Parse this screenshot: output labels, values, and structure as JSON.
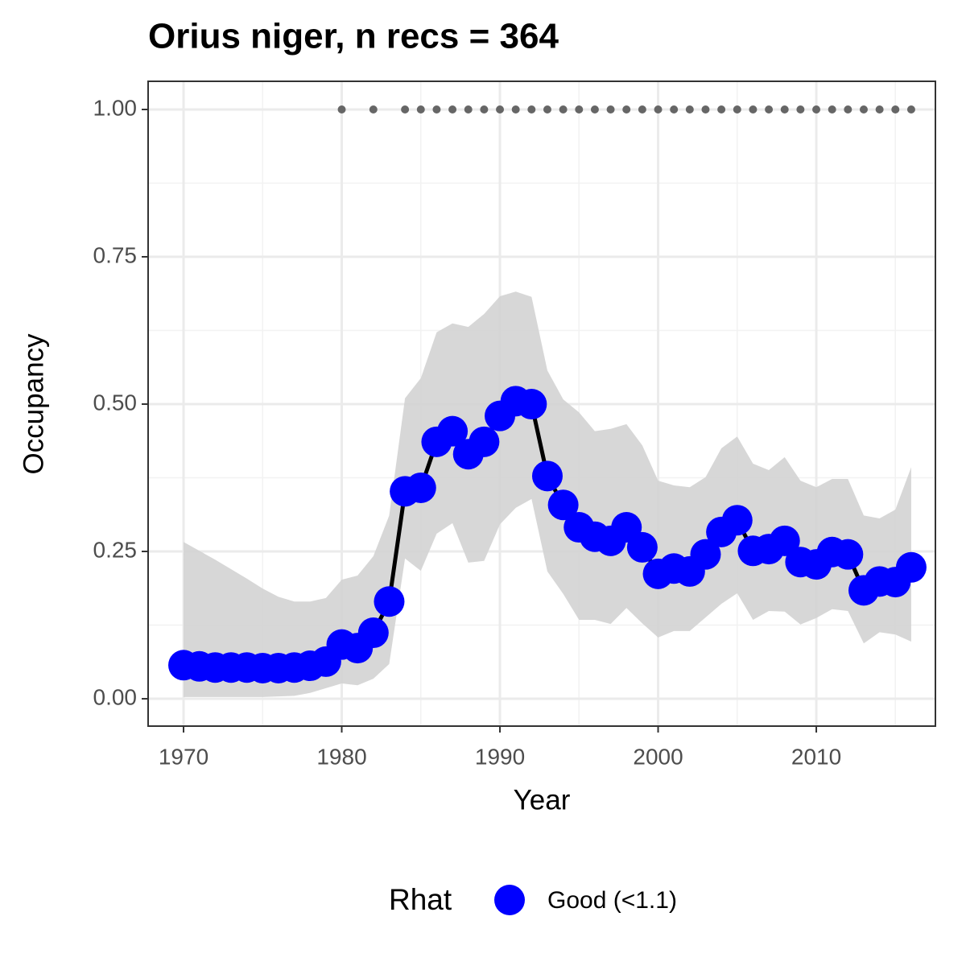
{
  "chart_data": {
    "type": "line",
    "title": "Orius niger, n recs = 364",
    "x_label": "Year",
    "y_label": "Occupancy",
    "legend_title": "Rhat",
    "legend_position": "bottom",
    "x": [
      1970,
      1971,
      1972,
      1973,
      1974,
      1975,
      1976,
      1977,
      1978,
      1979,
      1980,
      1981,
      1982,
      1983,
      1984,
      1985,
      1986,
      1987,
      1988,
      1989,
      1990,
      1991,
      1992,
      1993,
      1994,
      1995,
      1996,
      1997,
      1998,
      1999,
      2000,
      2001,
      2002,
      2003,
      2004,
      2005,
      2006,
      2007,
      2008,
      2009,
      2010,
      2011,
      2012,
      2013,
      2014,
      2015,
      2016
    ],
    "series": [
      {
        "name": "Good (<1.1)",
        "color": "#0000ff",
        "line_color": "#000000",
        "values": [
          0.057,
          0.055,
          0.053,
          0.053,
          0.053,
          0.052,
          0.052,
          0.053,
          0.056,
          0.063,
          0.092,
          0.086,
          0.112,
          0.165,
          0.352,
          0.358,
          0.436,
          0.454,
          0.415,
          0.436,
          0.48,
          0.505,
          0.5,
          0.378,
          0.329,
          0.291,
          0.275,
          0.268,
          0.291,
          0.257,
          0.212,
          0.221,
          0.216,
          0.245,
          0.283,
          0.303,
          0.251,
          0.254,
          0.268,
          0.232,
          0.228,
          0.249,
          0.245,
          0.184,
          0.199,
          0.198,
          0.223
        ]
      }
    ],
    "upper": [
      0.266,
      0.251,
      0.236,
      0.22,
      0.204,
      0.187,
      0.173,
      0.165,
      0.165,
      0.171,
      0.202,
      0.209,
      0.242,
      0.311,
      0.51,
      0.544,
      0.622,
      0.637,
      0.631,
      0.653,
      0.683,
      0.691,
      0.682,
      0.557,
      0.508,
      0.486,
      0.454,
      0.458,
      0.466,
      0.43,
      0.37,
      0.362,
      0.359,
      0.376,
      0.425,
      0.445,
      0.399,
      0.388,
      0.41,
      0.37,
      0.359,
      0.373,
      0.373,
      0.311,
      0.306,
      0.321,
      0.393
    ],
    "lower": [
      0.003,
      0.003,
      0.003,
      0.003,
      0.003,
      0.003,
      0.004,
      0.005,
      0.01,
      0.018,
      0.026,
      0.023,
      0.034,
      0.059,
      0.238,
      0.217,
      0.28,
      0.298,
      0.231,
      0.234,
      0.296,
      0.324,
      0.339,
      0.216,
      0.178,
      0.134,
      0.134,
      0.127,
      0.154,
      0.128,
      0.104,
      0.115,
      0.115,
      0.138,
      0.161,
      0.179,
      0.134,
      0.149,
      0.148,
      0.126,
      0.137,
      0.152,
      0.149,
      0.094,
      0.113,
      0.109,
      0.097
    ],
    "band_color": "#d3d3d3",
    "records": {
      "color": "#666666",
      "x": [
        1980,
        1982,
        1984,
        1985,
        1986,
        1987,
        1988,
        1989,
        1990,
        1991,
        1992,
        1993,
        1994,
        1995,
        1996,
        1997,
        1998,
        1999,
        2000,
        2001,
        2002,
        2003,
        2004,
        2005,
        2006,
        2007,
        2008,
        2009,
        2010,
        2011,
        2012,
        2013,
        2014,
        2015,
        2016
      ],
      "values": [
        1,
        1,
        1,
        1,
        1,
        1,
        1,
        1,
        1,
        1,
        1,
        1,
        1,
        1,
        1,
        1,
        1,
        1,
        1,
        1,
        1,
        1,
        1,
        1,
        1,
        1,
        1,
        1,
        1,
        1,
        1,
        1,
        1,
        1,
        1
      ]
    },
    "xlim": [
      1967.76,
      2017.53
    ],
    "ylim": [
      -0.0464,
      1.0478
    ],
    "xticks": [
      1970,
      1980,
      1990,
      2000,
      2010
    ],
    "yticks": [
      {
        "value": 0,
        "label": "0.00"
      },
      {
        "value": 0.25,
        "label": "0.25"
      },
      {
        "value": 0.5,
        "label": "0.50"
      },
      {
        "value": 0.75,
        "label": "0.75"
      },
      {
        "value": 1,
        "label": "1.00"
      }
    ],
    "xminor": [
      1975,
      1985,
      1995,
      2005,
      2015
    ],
    "yminor": [
      0.125,
      0.375,
      0.625,
      0.875
    ],
    "grid": true
  }
}
